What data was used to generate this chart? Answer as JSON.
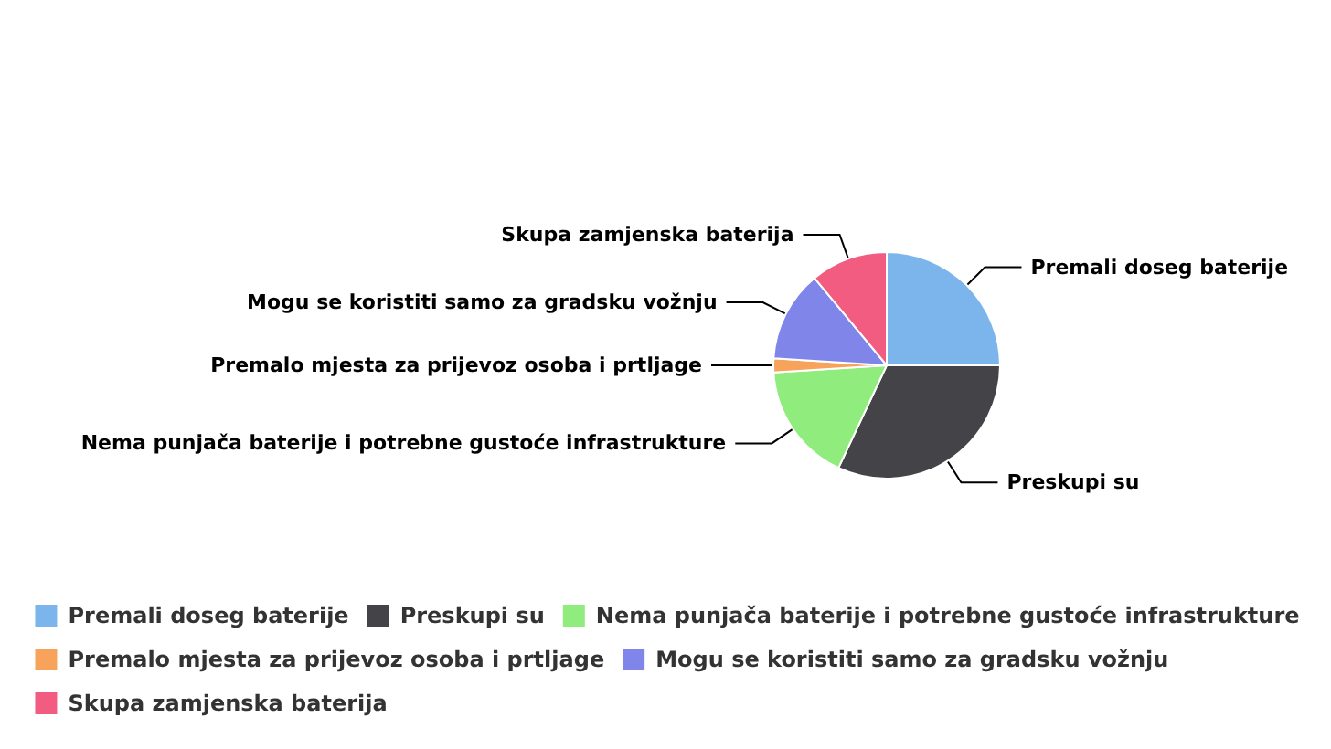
{
  "chart_data": {
    "type": "pie",
    "categories": [
      "Premali doseg baterije",
      "Preskupi su",
      "Nema punjača baterije i potrebne gustoće infrastrukture",
      "Premalo mjesta za prijevoz osoba i prtljage",
      "Mogu se koristiti samo za gradsku vožnju",
      "Skupa zamjenska baterija"
    ],
    "values": [
      25,
      32,
      17,
      2,
      13,
      11
    ],
    "colors": [
      "#7cb5ec",
      "#434348",
      "#90ed7d",
      "#f7a35c",
      "#8085e9",
      "#f15c80"
    ],
    "legend": "bottom"
  }
}
